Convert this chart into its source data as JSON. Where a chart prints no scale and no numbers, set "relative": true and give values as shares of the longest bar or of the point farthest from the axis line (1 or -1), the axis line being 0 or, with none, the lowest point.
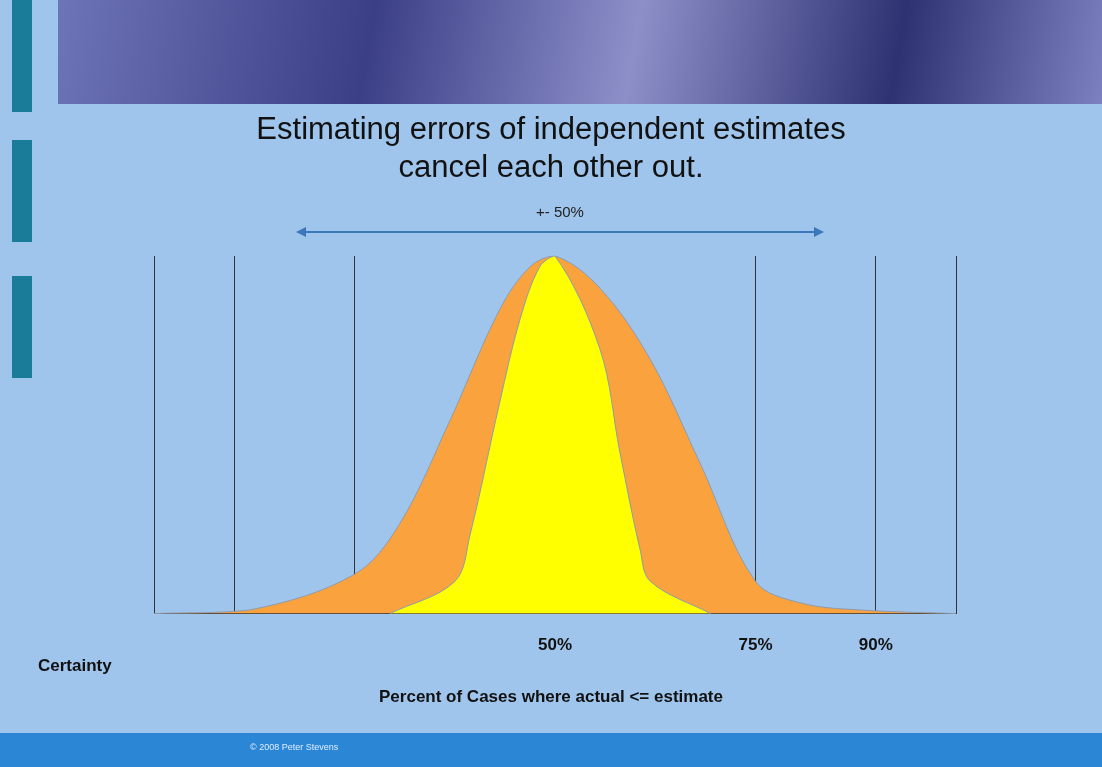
{
  "chart_data": {
    "type": "area",
    "title": "Estimating errors of independent estimates\ncancel each other out.",
    "xlabel": "Percent of Cases where actual <= estimate",
    "relative": true,
    "xlim": [
      0,
      100
    ],
    "xticks": [
      {
        "value": 0,
        "label": null
      },
      {
        "value": 10,
        "label": null
      },
      {
        "value": 25,
        "label": null
      },
      {
        "value": 50,
        "label": "50%"
      },
      {
        "value": 75,
        "label": "75%"
      },
      {
        "value": 90,
        "label": "90%"
      },
      {
        "value": 100,
        "label": null
      }
    ],
    "grid": "x",
    "legend": false,
    "annotations": [
      "+- 50%",
      "Certainty",
      "© 2008 Peter Stevens"
    ],
    "series": [
      {
        "color": "#f9a23e",
        "x": [
          0,
          11.9,
          25,
          30.6,
          36.9,
          43.1,
          46.9,
          50,
          55.6,
          61.9,
          68.1,
          75,
          80.6,
          88.1,
          100
        ],
        "values": [
          0,
          0.01,
          0.11,
          0.25,
          0.54,
          0.85,
          0.97,
          1,
          0.91,
          0.71,
          0.42,
          0.09,
          0.03,
          0.01,
          0
        ]
      },
      {
        "color": "#ffff00",
        "x": [
          29.4,
          37.5,
          39.4,
          43.1,
          45.6,
          48.1,
          50,
          55.6,
          58.1,
          60.6,
          61.9,
          69.4
        ],
        "values": [
          0,
          0.09,
          0.22,
          0.59,
          0.82,
          0.97,
          1,
          0.74,
          0.45,
          0.18,
          0.09,
          0
        ]
      }
    ]
  }
}
